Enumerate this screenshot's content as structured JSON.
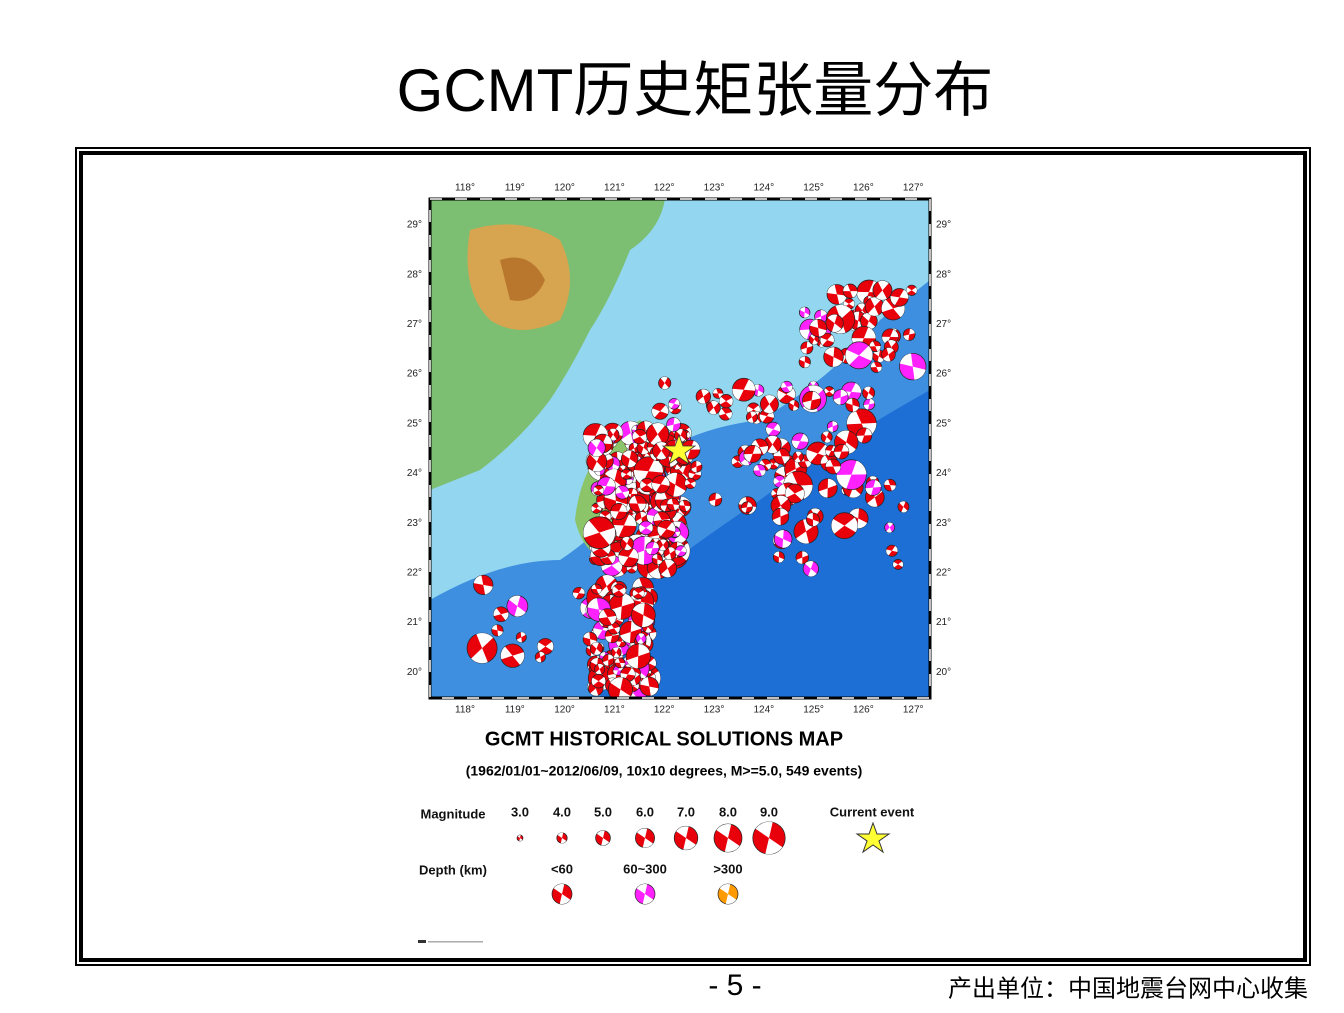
{
  "title": "GCMT历史矩张量分布",
  "map": {
    "lon_labels": [
      "118°",
      "119°",
      "120°",
      "121°",
      "122°",
      "123°",
      "124°",
      "125°",
      "126°",
      "127°"
    ],
    "lat_labels": [
      "29°",
      "28°",
      "27°",
      "26°",
      "25°",
      "24°",
      "23°",
      "22°",
      "21°",
      "20°"
    ],
    "title": "GCMT HISTORICAL SOLUTIONS MAP",
    "subtitle": "(1962/01/01~2012/06/09, 10x10 degrees, M>=5.0, 549 events)"
  },
  "legend": {
    "magnitude_label": "Magnitude",
    "magnitudes": [
      "3.0",
      "4.0",
      "5.0",
      "6.0",
      "7.0",
      "8.0",
      "9.0"
    ],
    "current_event": "Current event",
    "depth_label": "Depth (km)",
    "depths": [
      "<60",
      "60~300",
      ">300"
    ]
  },
  "footer": {
    "page": "- 5 -",
    "source": "产出单位：中国地震台网中心收集"
  }
}
